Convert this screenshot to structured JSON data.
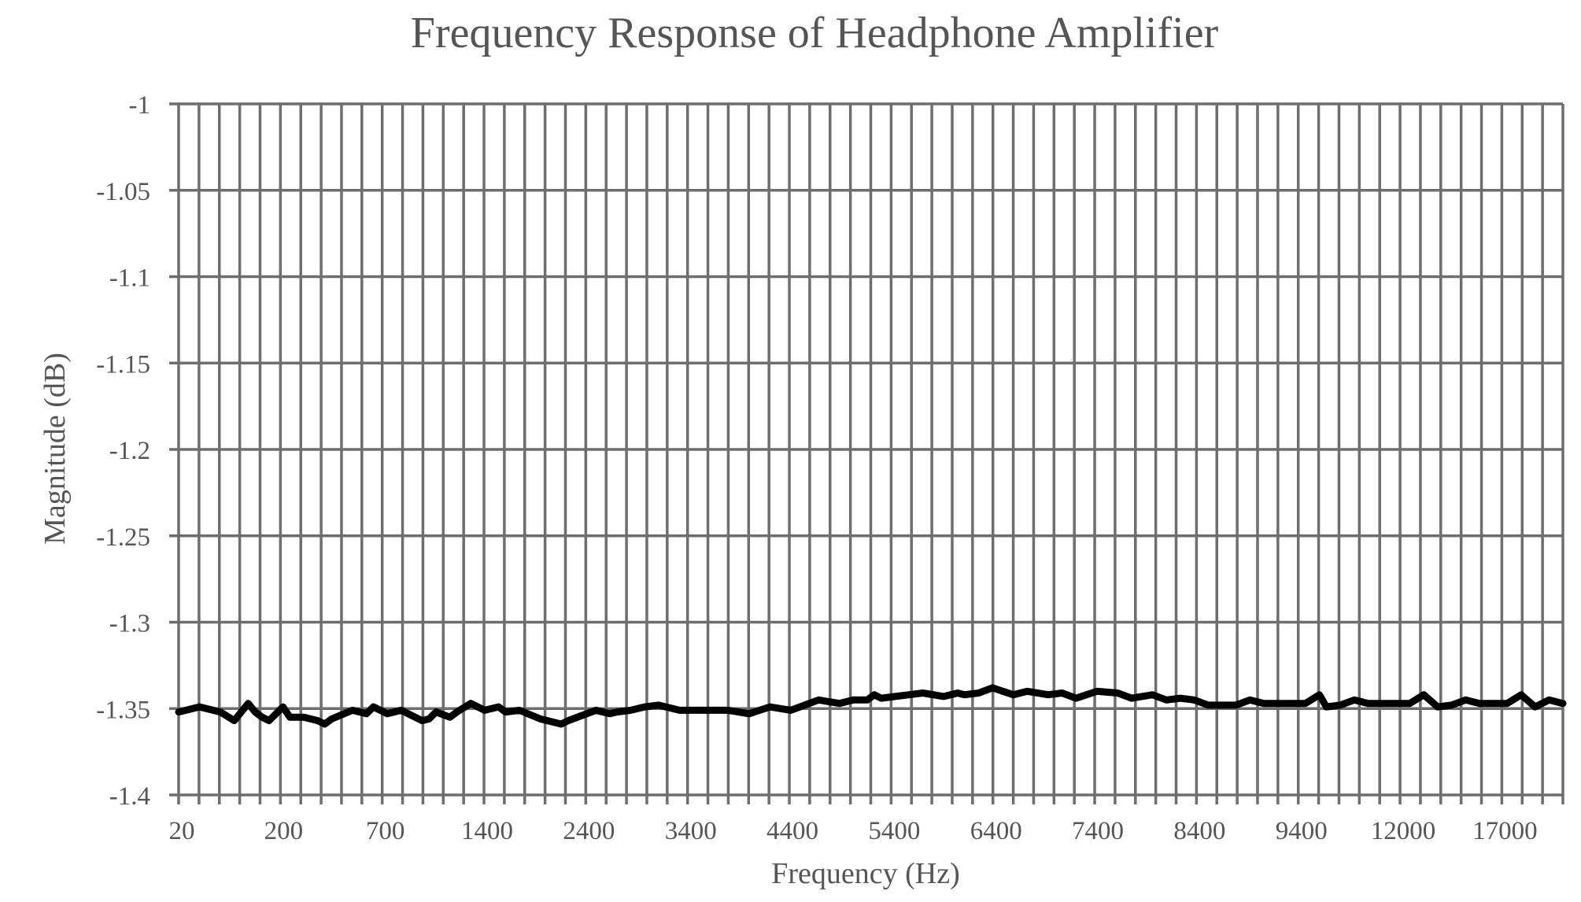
{
  "chart_data": {
    "type": "line",
    "title": "Frequency Response of Headphone Amplifier",
    "xlabel": "Frequency (Hz)",
    "ylabel": "Magnitude (dB)",
    "x_tick_labels": [
      "20",
      "200",
      "700",
      "1400",
      "2400",
      "3400",
      "4400",
      "5400",
      "6400",
      "7400",
      "8400",
      "9400",
      "12000",
      "17000"
    ],
    "y_ticks": [
      -1,
      -1.05,
      -1.1,
      -1.15,
      -1.2,
      -1.25,
      -1.3,
      -1.35,
      -1.4
    ],
    "y_tick_labels": [
      "-1",
      "-1.05",
      "-1.1",
      "-1.15",
      "-1.2",
      "-1.25",
      "-1.3",
      "-1.35",
      "-1.4"
    ],
    "ylim": [
      -1.4,
      -1
    ],
    "grid": true,
    "legend": "none",
    "series": [
      {
        "color": "#000000",
        "x_positions": [
          0,
          3,
          6,
          8,
          10,
          11,
          12,
          13,
          15,
          16,
          18,
          20,
          21,
          22,
          25,
          27,
          28,
          30,
          32,
          33,
          35,
          36,
          37,
          39,
          40,
          42,
          44,
          46,
          47,
          49,
          52,
          55,
          56,
          58,
          60,
          62,
          63,
          65,
          67,
          69,
          72,
          75,
          77,
          79,
          82,
          85,
          88,
          90,
          92,
          95,
          97,
          99,
          100,
          101,
          103,
          105,
          107,
          110,
          112,
          113,
          115,
          117,
          120,
          122,
          125,
          127,
          129,
          132,
          135,
          137,
          140,
          142,
          144,
          146,
          148,
          150,
          152,
          154,
          156,
          158,
          160,
          162,
          164,
          165,
          167,
          169,
          171,
          173,
          175,
          177,
          179,
          181,
          183,
          185,
          187,
          189,
          191,
          193,
          195,
          197,
          199
        ],
        "values": [
          -1.352,
          -1.349,
          -1.352,
          -1.357,
          -1.347,
          -1.352,
          -1.355,
          -1.357,
          -1.349,
          -1.355,
          -1.355,
          -1.357,
          -1.359,
          -1.356,
          -1.351,
          -1.353,
          -1.349,
          -1.353,
          -1.351,
          -1.353,
          -1.357,
          -1.356,
          -1.352,
          -1.355,
          -1.352,
          -1.347,
          -1.351,
          -1.349,
          -1.352,
          -1.351,
          -1.356,
          -1.359,
          -1.357,
          -1.354,
          -1.351,
          -1.353,
          -1.352,
          -1.351,
          -1.349,
          -1.348,
          -1.351,
          -1.351,
          -1.351,
          -1.351,
          -1.353,
          -1.349,
          -1.351,
          -1.348,
          -1.345,
          -1.347,
          -1.345,
          -1.345,
          -1.342,
          -1.344,
          -1.343,
          -1.342,
          -1.341,
          -1.343,
          -1.341,
          -1.342,
          -1.341,
          -1.338,
          -1.342,
          -1.34,
          -1.342,
          -1.341,
          -1.344,
          -1.34,
          -1.341,
          -1.344,
          -1.342,
          -1.345,
          -1.344,
          -1.345,
          -1.348,
          -1.348,
          -1.348,
          -1.345,
          -1.347,
          -1.347,
          -1.347,
          -1.347,
          -1.342,
          -1.349,
          -1.348,
          -1.345,
          -1.347,
          -1.347,
          -1.347,
          -1.347,
          -1.342,
          -1.349,
          -1.348,
          -1.345,
          -1.347,
          -1.347,
          -1.347,
          -1.342,
          -1.349,
          -1.345,
          -1.347
        ]
      }
    ]
  }
}
